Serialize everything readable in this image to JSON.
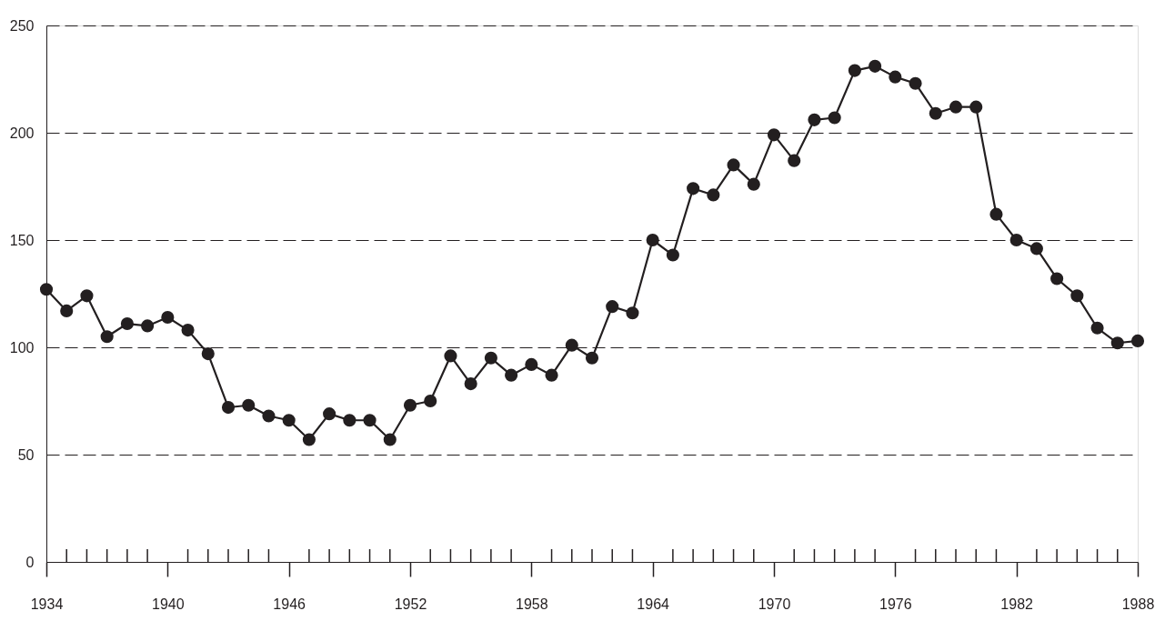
{
  "chart_data": {
    "type": "line",
    "x": [
      1934,
      1935,
      1936,
      1937,
      1938,
      1939,
      1940,
      1941,
      1942,
      1943,
      1944,
      1945,
      1946,
      1947,
      1948,
      1949,
      1950,
      1951,
      1952,
      1953,
      1954,
      1955,
      1956,
      1957,
      1958,
      1959,
      1960,
      1961,
      1962,
      1963,
      1964,
      1965,
      1966,
      1967,
      1968,
      1969,
      1970,
      1971,
      1972,
      1973,
      1974,
      1975,
      1976,
      1977,
      1978,
      1979,
      1980,
      1981,
      1982,
      1983,
      1984,
      1985,
      1986,
      1987,
      1988
    ],
    "series": [
      {
        "color": "#231f20",
        "values": [
          127,
          117,
          124,
          105,
          111,
          110,
          114,
          108,
          97,
          72,
          73,
          68,
          66,
          57,
          69,
          66,
          66,
          57,
          73,
          75,
          96,
          83,
          95,
          87,
          92,
          87,
          101,
          95,
          119,
          116,
          150,
          143,
          174,
          171,
          185,
          176,
          199,
          187,
          206,
          207,
          229,
          231,
          226,
          223,
          209,
          212,
          212,
          162,
          150,
          146,
          132,
          124,
          109,
          102,
          103
        ]
      }
    ],
    "xlim": [
      1934,
      1988
    ],
    "xticks": [
      1934,
      {
        "value": 1935,
        "label": null
      },
      {
        "value": 1936,
        "label": null
      },
      {
        "value": 1937,
        "label": null
      },
      {
        "value": 1938,
        "label": null
      },
      {
        "value": 1939,
        "label": null
      },
      1940,
      {
        "value": 1941,
        "label": null
      },
      {
        "value": 1942,
        "label": null
      },
      {
        "value": 1943,
        "label": null
      },
      {
        "value": 1944,
        "label": null
      },
      {
        "value": 1945,
        "label": null
      },
      1946,
      {
        "value": 1947,
        "label": null
      },
      {
        "value": 1948,
        "label": null
      },
      {
        "value": 1949,
        "label": null
      },
      {
        "value": 1950,
        "label": null
      },
      {
        "value": 1951,
        "label": null
      },
      1952,
      {
        "value": 1953,
        "label": null
      },
      {
        "value": 1954,
        "label": null
      },
      {
        "value": 1955,
        "label": null
      },
      {
        "value": 1956,
        "label": null
      },
      {
        "value": 1957,
        "label": null
      },
      1958,
      {
        "value": 1959,
        "label": null
      },
      {
        "value": 1960,
        "label": null
      },
      {
        "value": 1961,
        "label": null
      },
      {
        "value": 1962,
        "label": null
      },
      {
        "value": 1963,
        "label": null
      },
      1964,
      {
        "value": 1965,
        "label": null
      },
      {
        "value": 1966,
        "label": null
      },
      {
        "value": 1967,
        "label": null
      },
      {
        "value": 1968,
        "label": null
      },
      {
        "value": 1969,
        "label": null
      },
      1970,
      {
        "value": 1971,
        "label": null
      },
      {
        "value": 1972,
        "label": null
      },
      {
        "value": 1973,
        "label": null
      },
      {
        "value": 1974,
        "label": null
      },
      {
        "value": 1975,
        "label": null
      },
      1976,
      {
        "value": 1977,
        "label": null
      },
      {
        "value": 1978,
        "label": null
      },
      {
        "value": 1979,
        "label": null
      },
      {
        "value": 1980,
        "label": null
      },
      {
        "value": 1981,
        "label": null
      },
      1982,
      {
        "value": 1983,
        "label": null
      },
      {
        "value": 1984,
        "label": null
      },
      {
        "value": 1985,
        "label": null
      },
      {
        "value": 1986,
        "label": null
      },
      {
        "value": 1987,
        "label": null
      },
      1988
    ],
    "ylim": [
      0,
      250
    ],
    "yticks": [
      0,
      50,
      100,
      150,
      200,
      250
    ],
    "grid": "y",
    "marker": "circle",
    "line_style": "solid"
  }
}
